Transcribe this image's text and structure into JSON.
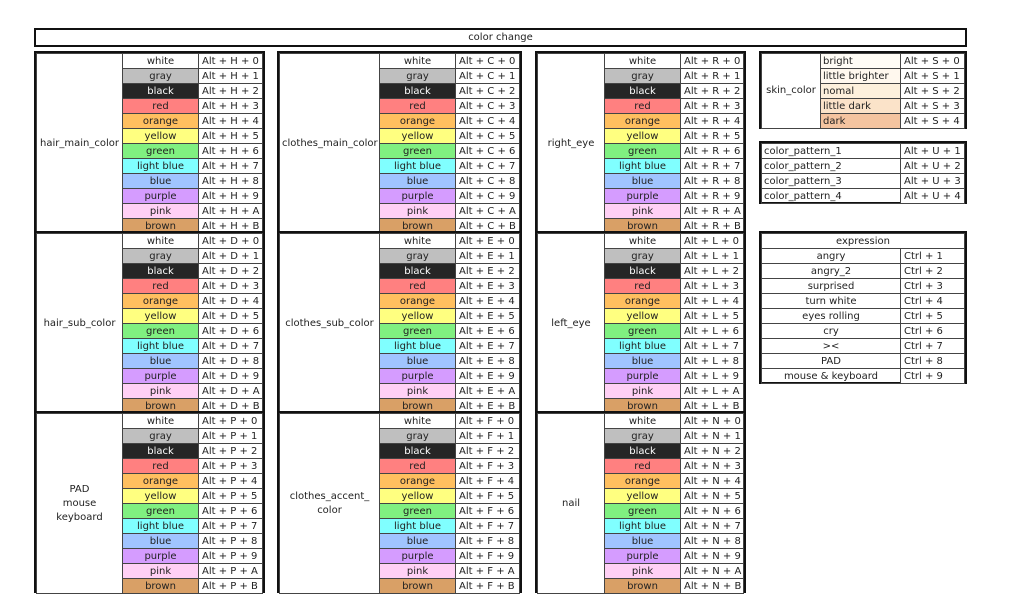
{
  "title": "color change",
  "palette": [
    {
      "name": "white",
      "bg": "#ffffff",
      "fg": "#222222"
    },
    {
      "name": "gray",
      "bg": "#bfbfbf",
      "fg": "#222222"
    },
    {
      "name": "black",
      "bg": "#262626",
      "fg": "#ffffff"
    },
    {
      "name": "red",
      "bg": "#ff8080",
      "fg": "#222222"
    },
    {
      "name": "orange",
      "bg": "#ffbf5f",
      "fg": "#222222"
    },
    {
      "name": "yellow",
      "bg": "#ffff80",
      "fg": "#222222"
    },
    {
      "name": "green",
      "bg": "#80f080",
      "fg": "#222222"
    },
    {
      "name": "light blue",
      "bg": "#80ffff",
      "fg": "#222222"
    },
    {
      "name": "blue",
      "bg": "#a0c4ff",
      "fg": "#222222"
    },
    {
      "name": "purple",
      "bg": "#d59cff",
      "fg": "#222222"
    },
    {
      "name": "pink",
      "bg": "#ffd0f5",
      "fg": "#222222"
    },
    {
      "name": "brown",
      "bg": "#d9a066",
      "fg": "#222222"
    }
  ],
  "suffixes": [
    "0",
    "1",
    "2",
    "3",
    "4",
    "5",
    "6",
    "7",
    "8",
    "9",
    "A",
    "B"
  ],
  "groups": [
    {
      "label": "hair_main_color",
      "key": "H"
    },
    {
      "label": "clothes_main_color",
      "key": "C"
    },
    {
      "label": "right_eye",
      "key": "R"
    },
    {
      "label": "hair_sub_color",
      "key": "D"
    },
    {
      "label": "clothes_sub_color",
      "key": "E"
    },
    {
      "label": "left_eye",
      "key": "L"
    },
    {
      "label": "PAD\nmouse\nkeyboard",
      "key": "P"
    },
    {
      "label": "clothes_accent_\ncolor",
      "key": "F"
    },
    {
      "label": "nail",
      "key": "N"
    }
  ],
  "skin": {
    "label": "skin_color",
    "rows": [
      {
        "name": "bright",
        "bg": "#fffcf5",
        "shortcut": "Alt + S + 0"
      },
      {
        "name": "little brighter",
        "bg": "#fff8ee",
        "shortcut": "Alt + S + 1"
      },
      {
        "name": "nomal",
        "bg": "#fdf0dc",
        "shortcut": "Alt + S + 2"
      },
      {
        "name": "little dark",
        "bg": "#fbe3c9",
        "shortcut": "Alt + S + 3"
      },
      {
        "name": "dark",
        "bg": "#f4c4a0",
        "shortcut": "Alt + S + 4"
      }
    ]
  },
  "patterns": [
    {
      "name": "color_pattern_1",
      "shortcut": "Alt + U + 1"
    },
    {
      "name": "color_pattern_2",
      "shortcut": "Alt + U + 2"
    },
    {
      "name": "color_pattern_3",
      "shortcut": "Alt + U + 3"
    },
    {
      "name": "color_pattern_4",
      "shortcut": "Alt + U + 4"
    }
  ],
  "expression": {
    "title": "expression",
    "rows": [
      {
        "name": "angry",
        "shortcut": "Ctrl + 1"
      },
      {
        "name": "angry_2",
        "shortcut": "Ctrl + 2"
      },
      {
        "name": "surprised",
        "shortcut": "Ctrl + 3"
      },
      {
        "name": "turn white",
        "shortcut": "Ctrl + 4"
      },
      {
        "name": "eyes rolling",
        "shortcut": "Ctrl + 5"
      },
      {
        "name": "cry",
        "shortcut": "Ctrl + 6"
      },
      {
        "name": "><",
        "shortcut": "Ctrl + 7"
      },
      {
        "name": "PAD",
        "shortcut": "Ctrl + 8"
      },
      {
        "name": "mouse & keyboard",
        "shortcut": "Ctrl + 9"
      }
    ]
  }
}
